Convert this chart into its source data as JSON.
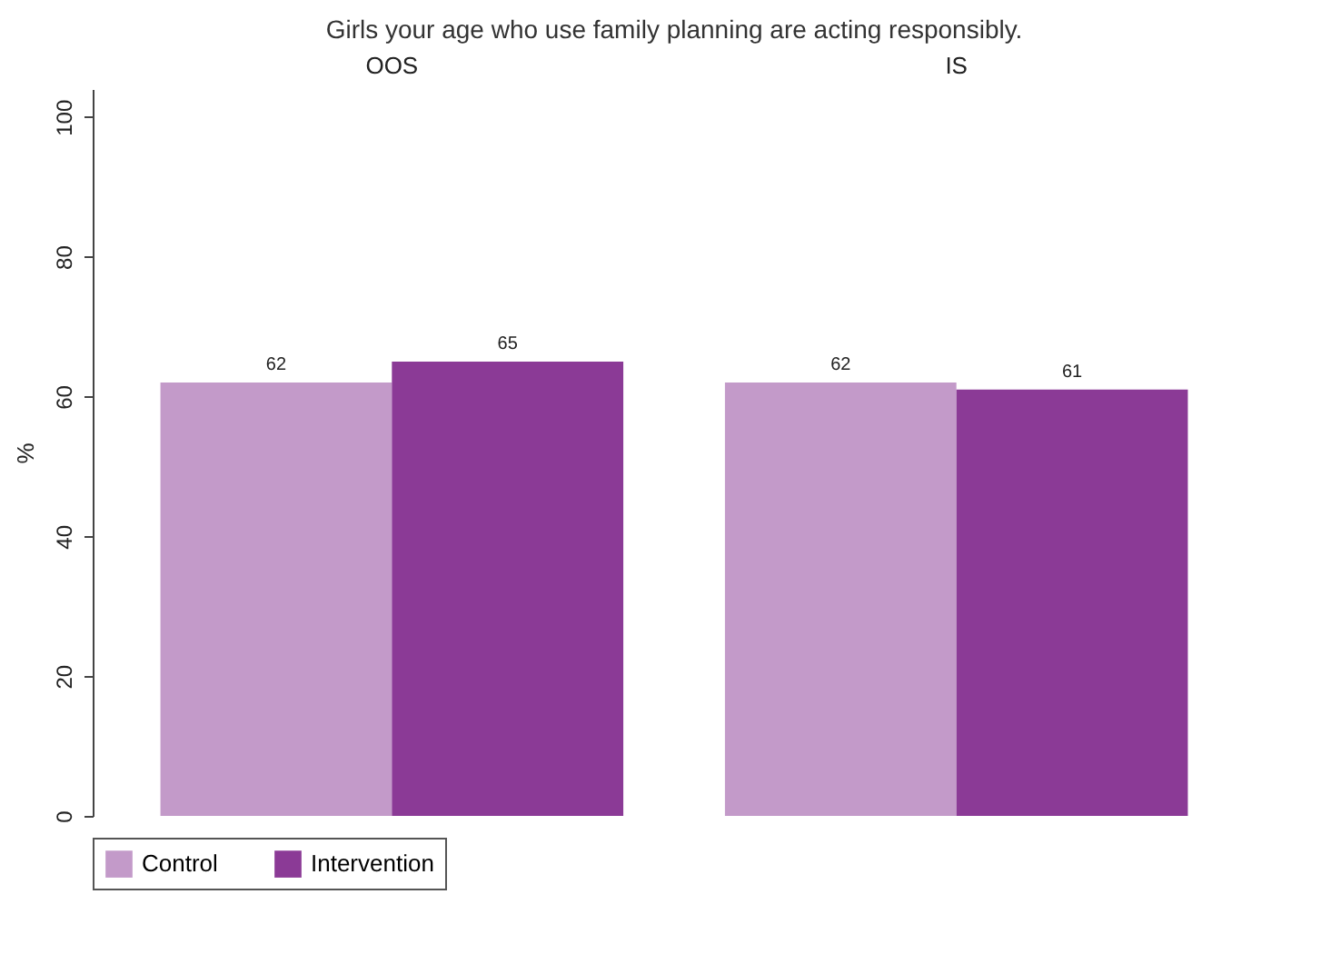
{
  "chart_data": {
    "type": "bar",
    "title": "Girls your age who use family planning are acting responsibly.",
    "ylabel": "%",
    "categories": [
      "OOS",
      "IS"
    ],
    "series": [
      {
        "name": "Control",
        "color": "#c39ac9",
        "values": [
          62,
          62
        ]
      },
      {
        "name": "Intervention",
        "color": "#8b3a96",
        "values": [
          65,
          61
        ]
      }
    ],
    "ylim": [
      0,
      104
    ],
    "yticks": [
      0,
      20,
      40,
      60,
      80,
      100
    ],
    "data_labels": true,
    "legend": "bottom",
    "grid": false
  }
}
